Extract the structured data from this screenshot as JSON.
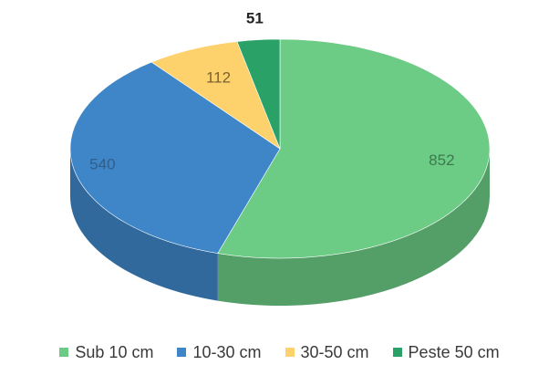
{
  "chart_data": {
    "type": "pie",
    "style": "3d",
    "title": "",
    "legend_position": "bottom",
    "slices": [
      {
        "label": "Sub 10 cm",
        "value": 852,
        "color": "#6ccb85"
      },
      {
        "label": "10-30  cm",
        "value": 540,
        "color": "#3f86c8"
      },
      {
        "label": "30-50 cm",
        "value": 112,
        "color": "#fdd26c"
      },
      {
        "label": "Peste 50 cm",
        "value": 51,
        "color": "#2aa267"
      }
    ]
  }
}
